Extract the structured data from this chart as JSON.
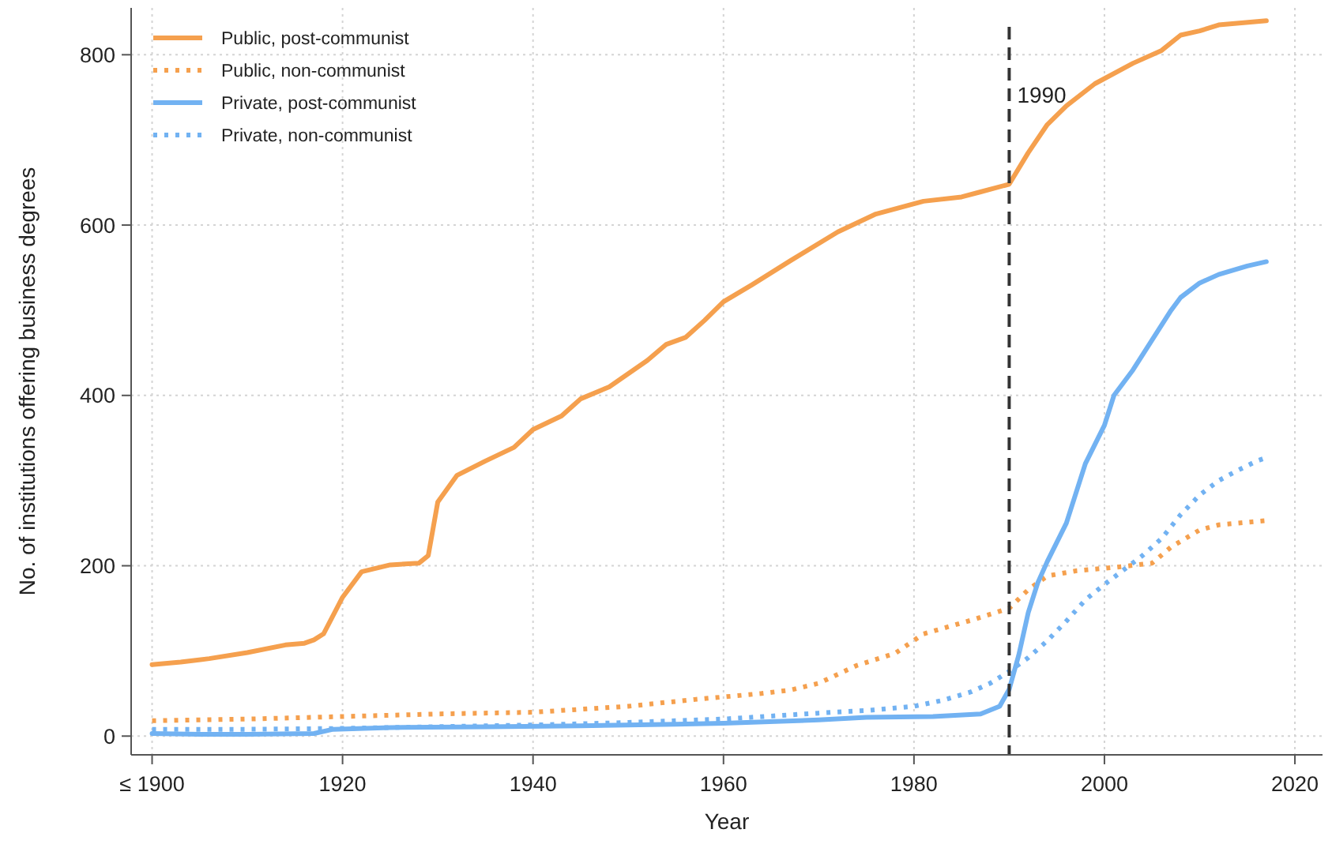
{
  "chart_data": {
    "type": "line",
    "xlabel": "Year",
    "ylabel": "No. of institutions offering business degrees",
    "xlim": [
      1897.8,
      2022.9
    ],
    "ylim": [
      -22,
      855
    ],
    "xticks": [
      {
        "value": 1900,
        "label": "≤ 1900"
      },
      1920,
      1940,
      1960,
      1980,
      2000,
      2020
    ],
    "yticks": [
      0,
      200,
      400,
      600,
      800
    ],
    "grid": true,
    "legend": "top left",
    "series": [
      {
        "name": "Public, post-communist",
        "color": "#f5a04e",
        "line_style": "solid",
        "x": [
          1900,
          1903,
          1906,
          1910,
          1914,
          1916,
          1917,
          1918,
          1920,
          1922,
          1925,
          1928,
          1929,
          1930,
          1932,
          1935,
          1938,
          1940,
          1943,
          1945,
          1948,
          1952,
          1954,
          1956,
          1958,
          1960,
          1963,
          1967,
          1972,
          1976,
          1981,
          1985,
          1987,
          1990,
          1992,
          1994,
          1996,
          1999,
          2003,
          2006,
          2008,
          2010,
          2012,
          2017
        ],
        "values": [
          84,
          87,
          91,
          98,
          107,
          109,
          113,
          120,
          163,
          193,
          201,
          203,
          212,
          275,
          306,
          323,
          339,
          360,
          376,
          396,
          410,
          441,
          460,
          468,
          488,
          510,
          530,
          558,
          592,
          613,
          628,
          633,
          639,
          648,
          685,
          718,
          740,
          766,
          790,
          805,
          823,
          828,
          835,
          840
        ]
      },
      {
        "name": "Public, non-communist",
        "color": "#f5a04e",
        "line_style": "dotted",
        "x": [
          1900,
          1910,
          1920,
          1930,
          1940,
          1950,
          1957,
          1960,
          1964,
          1967,
          1970,
          1974,
          1978,
          1981,
          1986,
          1990,
          1992,
          1994,
          1997,
          2001,
          2005,
          2007,
          2010,
          2012,
          2017
        ],
        "values": [
          18,
          20,
          23,
          26,
          28,
          35,
          43,
          46,
          50,
          54,
          62,
          83,
          97,
          120,
          136,
          150,
          172,
          188,
          194,
          198,
          203,
          222,
          242,
          248,
          253
        ]
      },
      {
        "name": "Private, post-communist",
        "color": "#72b2f2",
        "line_style": "solid",
        "x": [
          1900,
          1905,
          1910,
          1917,
          1919,
          1925,
          1935,
          1945,
          1955,
          1960,
          1970,
          1975,
          1982,
          1987,
          1989,
          1990,
          1991,
          1992,
          1993,
          1994,
          1996,
          1998,
          2000,
          2001,
          2003,
          2005,
          2007,
          2008,
          2010,
          2012,
          2015,
          2017
        ],
        "values": [
          3,
          2,
          2,
          3,
          8,
          10,
          11,
          12,
          14,
          15,
          19,
          22,
          23,
          26,
          35,
          55,
          95,
          145,
          180,
          205,
          250,
          320,
          365,
          400,
          430,
          465,
          500,
          515,
          532,
          542,
          552,
          557
        ]
      },
      {
        "name": "Private, non-communist",
        "color": "#72b2f2",
        "line_style": "dotted",
        "x": [
          1900,
          1910,
          1920,
          1930,
          1940,
          1950,
          1960,
          1970,
          1975,
          1980,
          1983,
          1986,
          1988,
          1990,
          1992,
          1994,
          1996,
          1998,
          2000,
          2002,
          2004,
          2006,
          2008,
          2010,
          2012,
          2014,
          2016,
          2017
        ],
        "values": [
          8,
          8,
          9,
          11,
          13,
          16,
          20,
          27,
          30,
          35,
          42,
          52,
          62,
          76,
          92,
          112,
          135,
          160,
          178,
          195,
          212,
          232,
          260,
          283,
          300,
          312,
          323,
          327
        ]
      }
    ],
    "ref_lines": [
      {
        "axis": "x",
        "value": 1990,
        "label": "1990",
        "color": "#333333",
        "line_style": "dashed"
      }
    ]
  }
}
